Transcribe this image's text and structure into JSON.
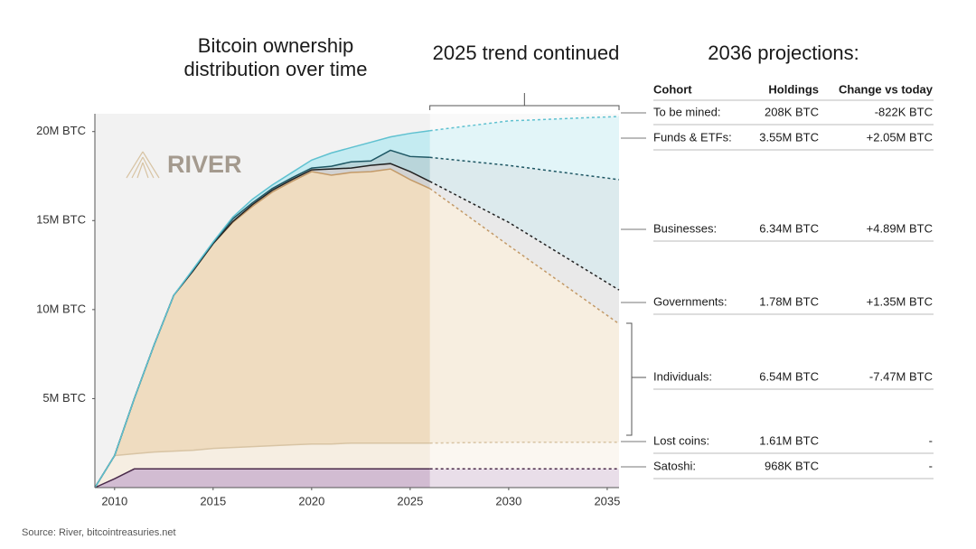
{
  "chart_data": {
    "type": "area",
    "title": "Bitcoin ownership distribution over time",
    "annotation": "2025 trend continued",
    "x": [
      2009,
      2010,
      2011,
      2012,
      2013,
      2014,
      2015,
      2016,
      2017,
      2018,
      2019,
      2020,
      2021,
      2022,
      2023,
      2024,
      2025,
      2026,
      2030,
      2035.6
    ],
    "xlim": [
      2009,
      2035.6
    ],
    "xticks": [
      2010,
      2015,
      2020,
      2025,
      2030,
      2035
    ],
    "ylim": [
      0,
      21
    ],
    "yticks": [
      {
        "value": 5,
        "label": "5M BTC"
      },
      {
        "value": 10,
        "label": "10M BTC"
      },
      {
        "value": 15,
        "label": "15M BTC"
      },
      {
        "value": 20,
        "label": "20M BTC"
      }
    ],
    "projection_from": 2026,
    "series": [
      {
        "color": "#d2bcd2",
        "line_color": "#4a2a4a",
        "values": [
          0,
          0.5,
          1.05,
          1.05,
          1.05,
          1.05,
          1.05,
          1.05,
          1.05,
          1.05,
          1.05,
          1.05,
          1.05,
          1.05,
          1.05,
          1.05,
          1.05,
          1.05,
          1.05,
          1.05
        ]
      },
      {
        "color": "#f6eee2",
        "line_color": "#d8c4a4",
        "values": [
          0,
          1.3,
          0.85,
          0.95,
          1.0,
          1.05,
          1.15,
          1.2,
          1.25,
          1.3,
          1.35,
          1.4,
          1.4,
          1.45,
          1.45,
          1.45,
          1.45,
          1.45,
          1.5,
          1.5
        ]
      },
      {
        "color": "#efdcc0",
        "line_color": "#c39a68",
        "values": [
          0,
          0,
          3.1,
          6.0,
          8.75,
          10.1,
          11.5,
          12.65,
          13.5,
          14.25,
          14.8,
          15.3,
          15.1,
          15.2,
          15.25,
          15.4,
          14.8,
          14.3,
          11.05,
          6.65
        ]
      },
      {
        "color": "#d2d2d2",
        "line_color": "#222222",
        "values": [
          0,
          0,
          0,
          0,
          0,
          0,
          0,
          0.05,
          0.1,
          0.1,
          0.1,
          0.1,
          0.35,
          0.25,
          0.35,
          0.3,
          0.45,
          0.4,
          1.3,
          1.9
        ]
      },
      {
        "color": "#b9d5da",
        "line_color": "#1d5663",
        "values": [
          0,
          0,
          0,
          0,
          0,
          0.05,
          0.05,
          0.15,
          0.1,
          0.1,
          0.1,
          0.1,
          0.15,
          0.35,
          0.25,
          0.75,
          0.85,
          1.35,
          3.2,
          6.2
        ]
      },
      {
        "color": "#c4ebf1",
        "line_color": "#5fc1d0",
        "values": [
          0,
          0,
          0,
          0,
          0,
          0.05,
          0.05,
          0.1,
          0.2,
          0.2,
          0.3,
          0.45,
          0.75,
          0.8,
          1.05,
          0.75,
          1.3,
          1.5,
          2.5,
          3.55
        ]
      }
    ]
  },
  "logo": "RIVER",
  "projections": {
    "title": "2036 projections:",
    "columns": [
      "Cohort",
      "Holdings",
      "Change vs today"
    ],
    "rows": [
      [
        "To be mined:",
        "208K BTC",
        "-822K BTC"
      ],
      [
        "Funds & ETFs:",
        "3.55M BTC",
        "+2.05M BTC"
      ],
      [
        "Businesses:",
        "6.34M BTC",
        "+4.89M BTC"
      ],
      [
        "Governments:",
        "1.78M BTC",
        "+1.35M BTC"
      ],
      [
        "Individuals:",
        "6.54M BTC",
        "-7.47M BTC"
      ],
      [
        "Lost coins:",
        "1.61M BTC",
        "-"
      ],
      [
        "Satoshi:",
        "968K BTC",
        "-"
      ]
    ]
  },
  "source": "Source: River, bitcointreasuries.net"
}
